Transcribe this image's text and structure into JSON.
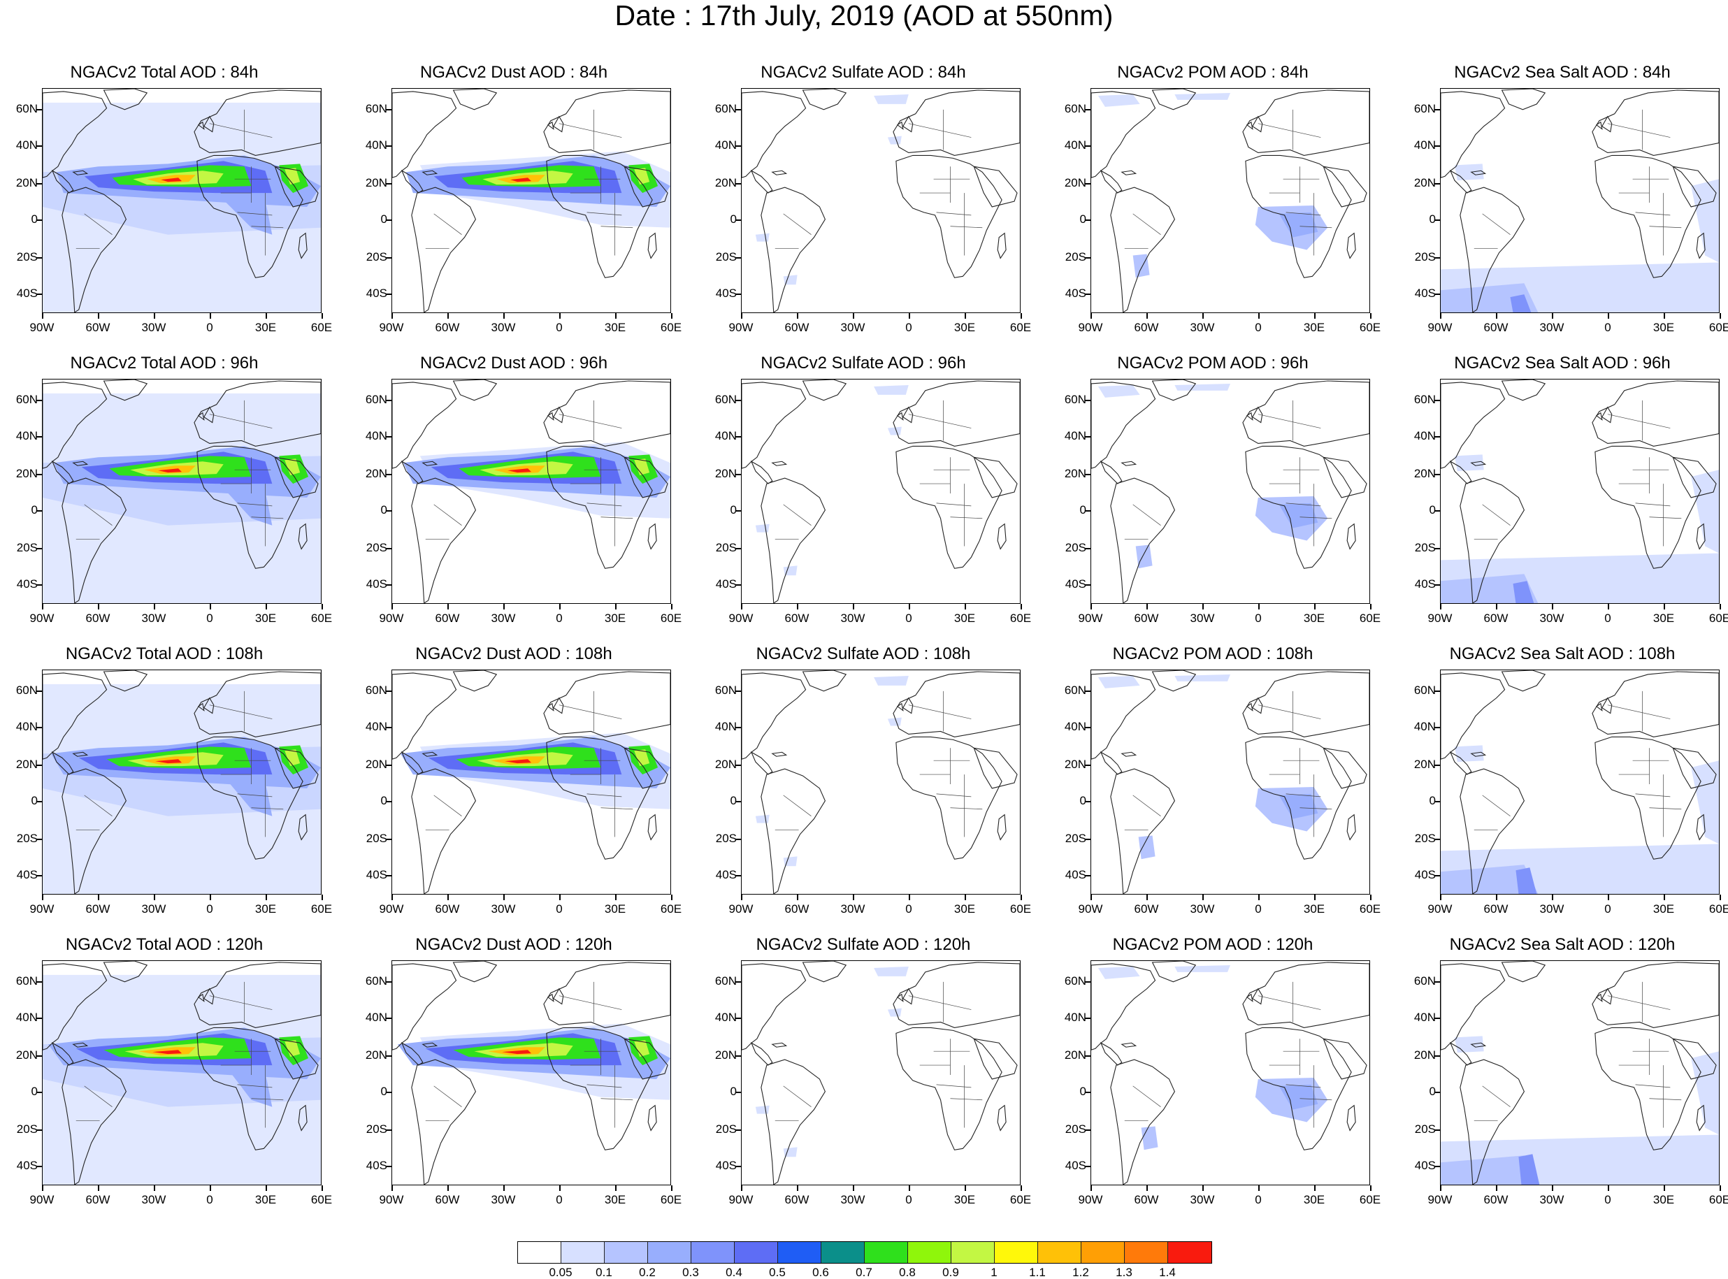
{
  "title": "Date : 17th July, 2019 (AOD at 550nm)",
  "y_axis_labels": [
    "60N",
    "40N",
    "20N",
    "0",
    "20S",
    "40S"
  ],
  "x_axis_labels": [
    "90W",
    "60W",
    "30W",
    "0",
    "30E",
    "60E"
  ],
  "panels": [
    [
      "NGACv2 Total AOD : 84h",
      "NGACv2 Dust AOD : 84h",
      "NGACv2 Sulfate AOD : 84h",
      "NGACv2 POM AOD : 84h",
      "NGACv2 Sea Salt AOD : 84h"
    ],
    [
      "NGACv2 Total AOD : 96h",
      "NGACv2 Dust AOD : 96h",
      "NGACv2 Sulfate AOD : 96h",
      "NGACv2 POM AOD : 96h",
      "NGACv2 Sea Salt AOD : 96h"
    ],
    [
      "NGACv2 Total AOD : 108h",
      "NGACv2 Dust AOD : 108h",
      "NGACv2 Sulfate AOD : 108h",
      "NGACv2 POM AOD : 108h",
      "NGACv2 Sea Salt AOD : 108h"
    ],
    [
      "NGACv2 Total AOD : 120h",
      "NGACv2 Dust AOD : 120h",
      "NGACv2 Sulfate AOD : 120h",
      "NGACv2 POM AOD : 120h",
      "NGACv2 Sea Salt  AOD : 120h"
    ]
  ],
  "colorbar": {
    "colors": [
      "#ffffff",
      "#d7e0ff",
      "#b5c4ff",
      "#98aefd",
      "#7f93fb",
      "#5e6df5",
      "#1f5df5",
      "#0b8f8a",
      "#2fe01c",
      "#8ff60b",
      "#c3f743",
      "#fff80a",
      "#ffc107",
      "#ff9f05",
      "#ff7a0a",
      "#f91b0e"
    ],
    "labels": [
      "0.05",
      "0.1",
      "0.2",
      "0.3",
      "0.4",
      "0.5",
      "0.6",
      "0.7",
      "0.8",
      "0.9",
      "1",
      "1.1",
      "1.2",
      "1.3",
      "1.4"
    ]
  }
}
